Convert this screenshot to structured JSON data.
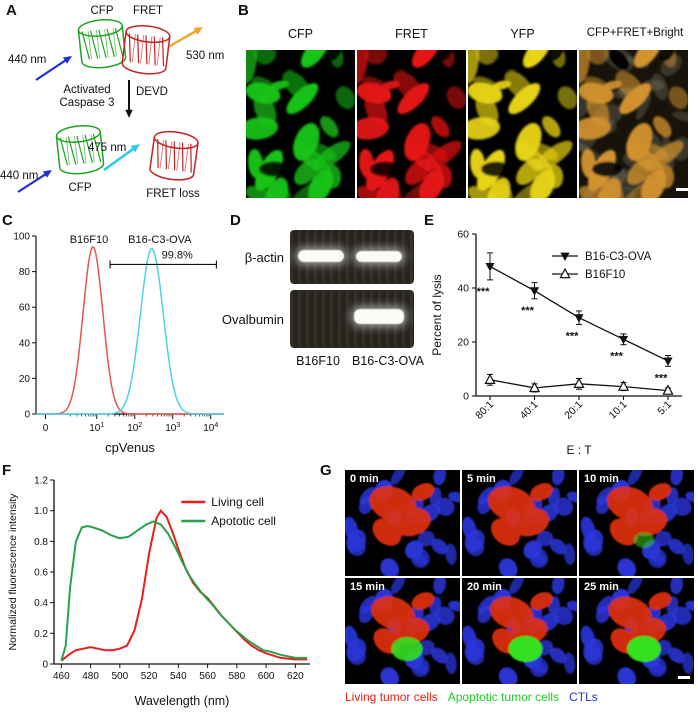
{
  "panelA": {
    "label": "A",
    "cfp_top": "CFP",
    "fret_top": "FRET",
    "ex_440_a": "440 nm",
    "em_530": "530 nm",
    "caspase": "Activated\nCaspase 3",
    "devd": "DEVD",
    "em_475": "475 nm",
    "ex_440_b": "440 nm",
    "cfp_bottom": "CFP",
    "fret_loss": "FRET loss",
    "colors": {
      "cfp": "#1fa31f",
      "fret": "#c42121",
      "ex_arrow": "#2030cc",
      "em530_arrow": "#efa424",
      "em475_arrow": "#2cc9e8",
      "cleave_arrow": "#111111"
    }
  },
  "panelB": {
    "label": "B",
    "tiles": [
      {
        "title": "CFP",
        "color": "#17c517",
        "bg": "#000000",
        "bright": false
      },
      {
        "title": "FRET",
        "color": "#e61414",
        "bg": "#000000",
        "bright": false
      },
      {
        "title": "YFP",
        "color": "#e8d414",
        "bg": "#000000",
        "bright": false
      },
      {
        "title": "CFP+FRET+Bright",
        "color": "#d2922e",
        "bg": "#17130a",
        "bright": true
      }
    ]
  },
  "panelC": {
    "label": "C"
  },
  "panelD": {
    "label": "D",
    "row_labels": [
      "β-actin",
      "Ovalbumin"
    ],
    "col_labels": [
      "B16F10",
      "B16-C3-OVA"
    ],
    "bands": {
      "actin": [
        true,
        true
      ],
      "ovalbumin": [
        false,
        true
      ]
    }
  },
  "panelE": {
    "label": "E"
  },
  "panelF": {
    "label": "F"
  },
  "panelG": {
    "label": "G",
    "times": [
      "0 min",
      "5 min",
      "10 min",
      "15 min",
      "20 min",
      "25 min"
    ],
    "green_levels": [
      0,
      0,
      0.25,
      0.85,
      1,
      1
    ],
    "legend": [
      {
        "text": "Living tumor cells",
        "color": "#e82210"
      },
      {
        "text": "Apoptotic tumor cells",
        "color": "#22c825"
      },
      {
        "text": "CTLs",
        "color": "#2431d8"
      }
    ]
  },
  "chart_data": [
    {
      "id": "flow",
      "type": "line",
      "title": "",
      "xlabel": "cpVenus",
      "ylabel": "",
      "x_ticks": [
        "0",
        "10^1",
        "10^2",
        "10^3",
        "10^4"
      ],
      "ylim": [
        0,
        100
      ],
      "y_ticks": [
        0,
        20,
        40,
        60,
        80,
        100
      ],
      "gate": {
        "label": "99.8%",
        "from": 1.35,
        "to": 4.15,
        "y": 84
      },
      "series": [
        {
          "name": "B16F10",
          "color": "#e4574f",
          "peak": 0.9,
          "sigma": 0.26,
          "height": 94
        },
        {
          "name": "B16-C3-OVA",
          "color": "#4fd0e8",
          "peak": 2.45,
          "sigma": 0.3,
          "height": 93
        }
      ]
    },
    {
      "id": "lysis",
      "type": "line",
      "title": "",
      "xlabel": "E : T",
      "ylabel": "Percent of lysis",
      "categories": [
        "80:1",
        "40:1",
        "20:1",
        "10:1",
        "5:1"
      ],
      "ylim": [
        0,
        60
      ],
      "y_ticks": [
        0,
        20,
        40,
        60
      ],
      "series": [
        {
          "name": "B16-C3-OVA",
          "marker": "down-filled",
          "color": "#111111",
          "values": [
            48,
            39,
            29,
            21,
            13
          ],
          "errors": [
            5,
            3,
            2.5,
            2,
            2
          ],
          "sig": [
            "***",
            "***",
            "***",
            "***",
            "***"
          ]
        },
        {
          "name": "B16F10",
          "marker": "up-open",
          "color": "#111111",
          "values": [
            6,
            3,
            4.5,
            3.5,
            2
          ],
          "errors": [
            2,
            1.5,
            2,
            1.5,
            1
          ]
        }
      ]
    },
    {
      "id": "spectra",
      "type": "line",
      "title": "",
      "xlabel": "Wavelength (nm)",
      "ylabel": "Normalized fluorescence intensity",
      "xlim": [
        455,
        630
      ],
      "x_ticks": [
        460,
        480,
        500,
        520,
        540,
        560,
        580,
        600,
        620
      ],
      "ylim": [
        0,
        1.2
      ],
      "y_ticks": [
        "0",
        "0.2",
        "0.4",
        "0.6",
        "0.8",
        "1.0",
        "1.2"
      ],
      "legend_position": "top-right",
      "series": [
        {
          "name": "Living cell",
          "color": "#e81e1e",
          "x": [
            460,
            465,
            470,
            475,
            480,
            485,
            490,
            495,
            500,
            505,
            510,
            515,
            520,
            525,
            528,
            532,
            536,
            540,
            545,
            550,
            555,
            560,
            565,
            570,
            575,
            580,
            585,
            590,
            595,
            600,
            610,
            620,
            628
          ],
          "y": [
            0.02,
            0.06,
            0.09,
            0.1,
            0.11,
            0.1,
            0.09,
            0.09,
            0.1,
            0.12,
            0.22,
            0.42,
            0.72,
            0.95,
            1.0,
            0.96,
            0.86,
            0.75,
            0.62,
            0.53,
            0.47,
            0.43,
            0.37,
            0.31,
            0.26,
            0.21,
            0.16,
            0.12,
            0.09,
            0.07,
            0.04,
            0.03,
            0.03
          ]
        },
        {
          "name": "Apototic cell",
          "color": "#28a14b",
          "x": [
            460,
            463,
            466,
            470,
            474,
            478,
            482,
            488,
            494,
            500,
            506,
            512,
            518,
            523,
            528,
            533,
            538,
            543,
            548,
            553,
            558,
            563,
            568,
            573,
            578,
            583,
            588,
            593,
            598,
            603,
            610,
            620,
            628
          ],
          "y": [
            0.02,
            0.12,
            0.5,
            0.8,
            0.89,
            0.9,
            0.89,
            0.87,
            0.84,
            0.82,
            0.83,
            0.87,
            0.91,
            0.93,
            0.91,
            0.85,
            0.76,
            0.66,
            0.57,
            0.5,
            0.44,
            0.39,
            0.33,
            0.28,
            0.23,
            0.19,
            0.15,
            0.12,
            0.09,
            0.08,
            0.06,
            0.04,
            0.04
          ]
        }
      ]
    }
  ]
}
